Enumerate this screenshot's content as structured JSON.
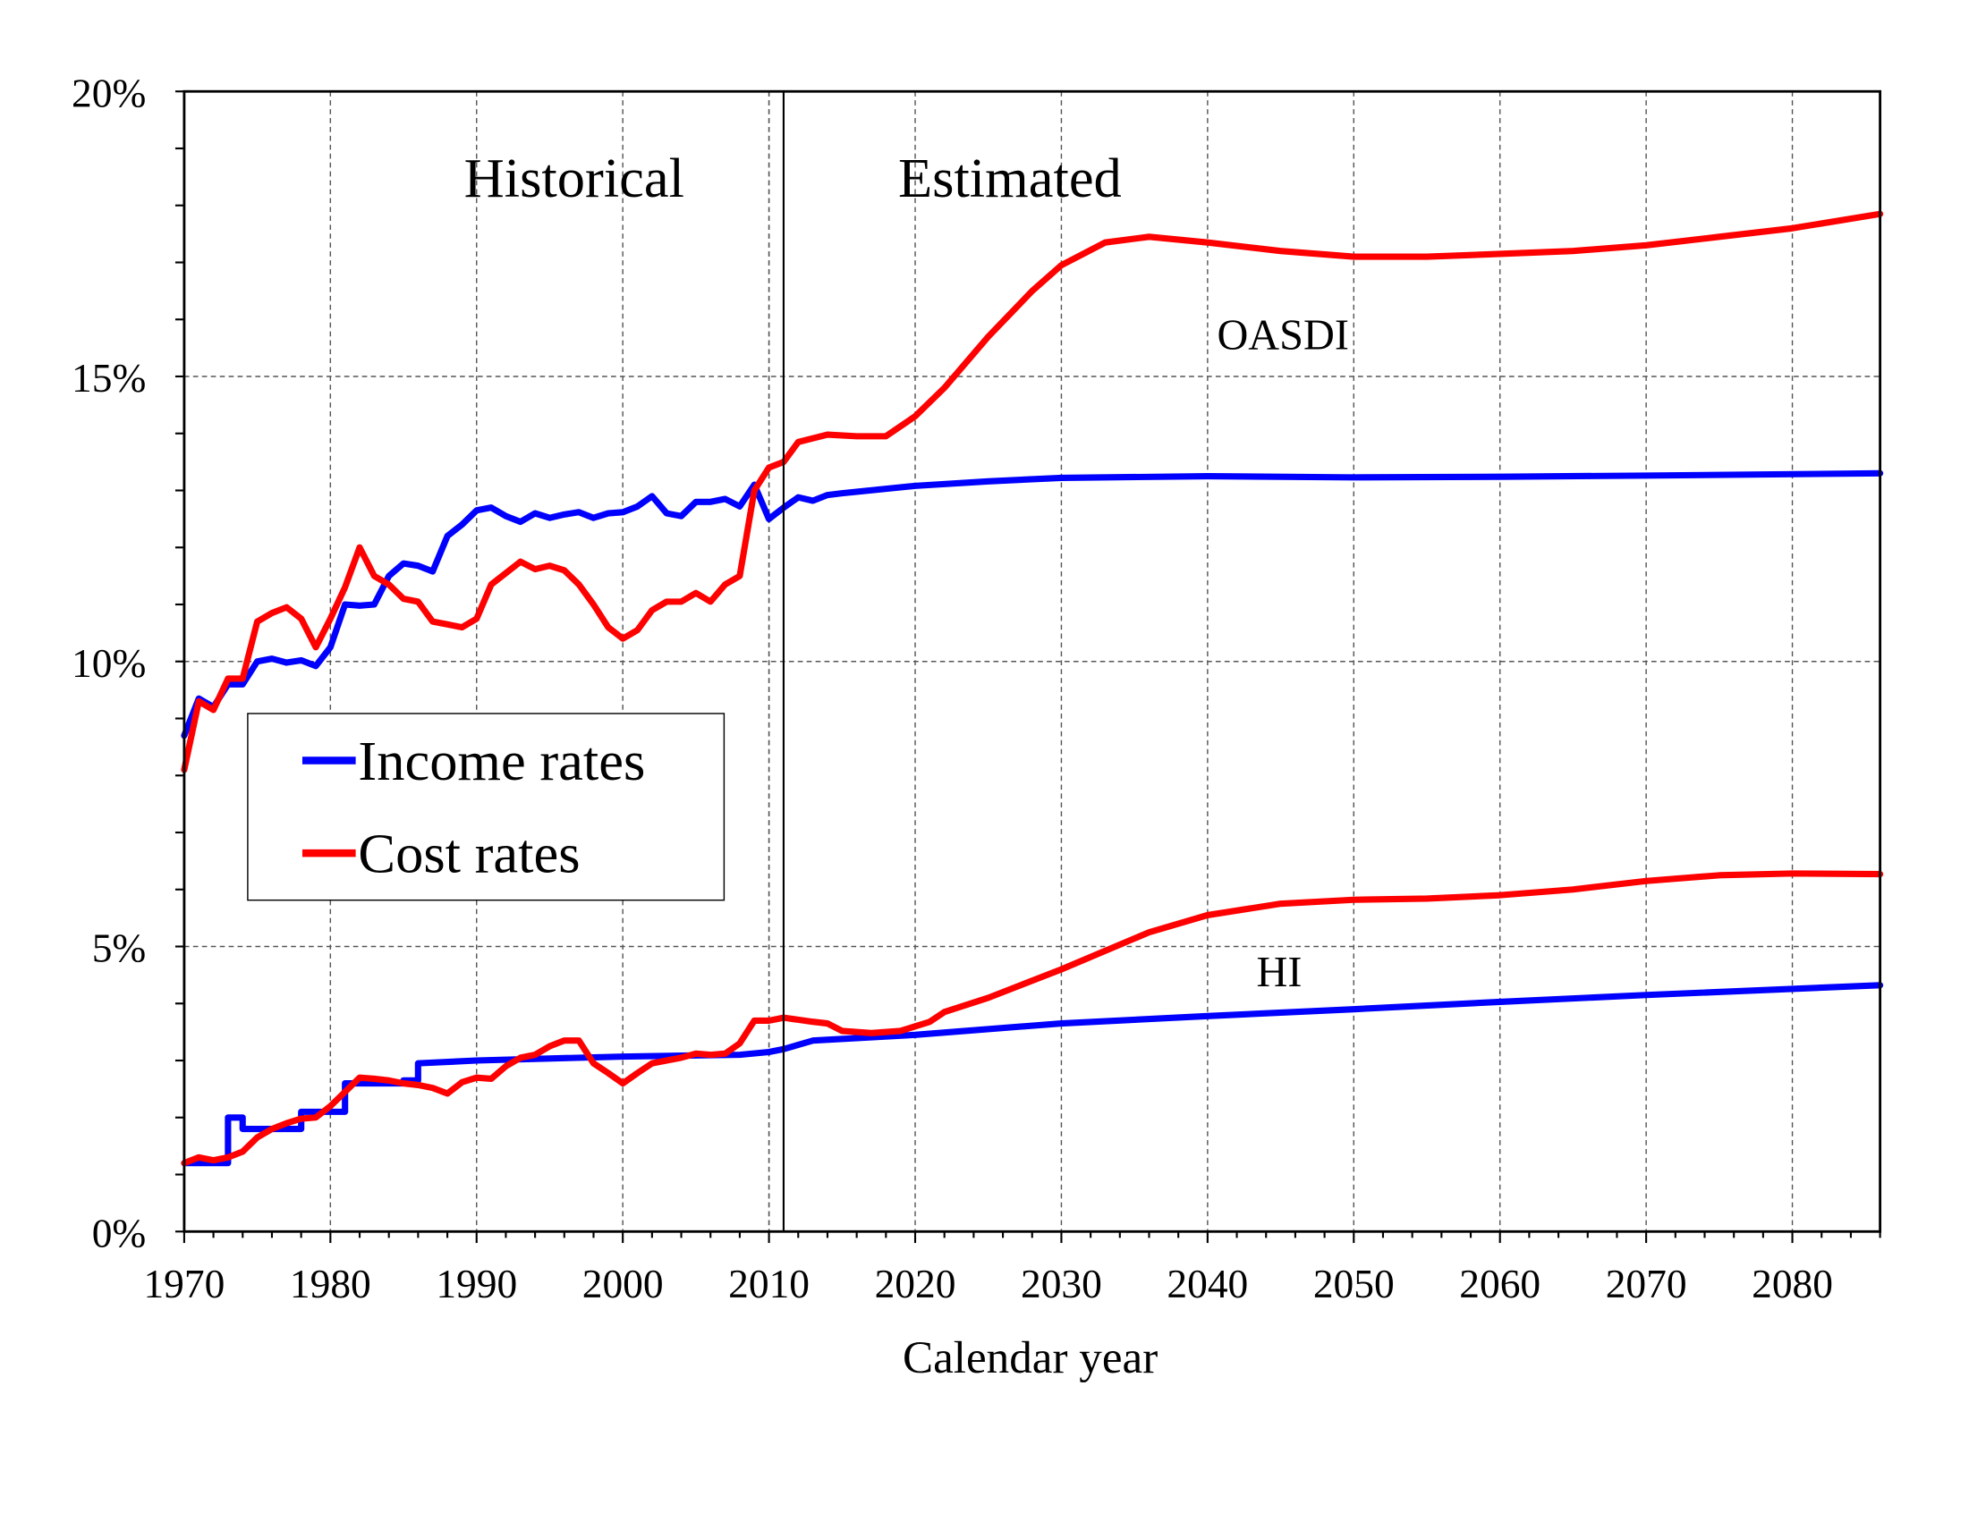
{
  "chart_data": {
    "type": "line",
    "xlabel": "Calendar year",
    "ylabel": "",
    "xlim": [
      1970,
      2086
    ],
    "ylim": [
      0,
      20
    ],
    "x_ticks": [
      1970,
      1980,
      1990,
      2000,
      2010,
      2020,
      2030,
      2040,
      2050,
      2060,
      2070,
      2080
    ],
    "x_tick_labels": [
      "1970",
      "1980",
      "1990",
      "2000",
      "2010",
      "2020",
      "2030",
      "2040",
      "2050",
      "2060",
      "2070",
      "2080"
    ],
    "y_ticks": [
      0,
      5,
      10,
      15,
      20
    ],
    "y_tick_labels": [
      "0%",
      "5%",
      "10%",
      "15%",
      "20%"
    ],
    "grid": true,
    "divider_year": 2011,
    "region_labels": [
      "Historical",
      "Estimated"
    ],
    "annotations": [
      "OASDI",
      "HI"
    ],
    "legend": {
      "placement": "middle-left",
      "entries": [
        {
          "label": "Income rates",
          "color": "#0000ff"
        },
        {
          "label": "Cost rates",
          "color": "#ff0000"
        }
      ]
    },
    "series": [
      {
        "group": "OASDI",
        "kind": "Income rates",
        "color": "#0000ff",
        "points": [
          [
            1970,
            8.7
          ],
          [
            1971,
            9.35
          ],
          [
            1972,
            9.2
          ],
          [
            1973,
            9.6
          ],
          [
            1974,
            9.6
          ],
          [
            1975,
            10.0
          ],
          [
            1976,
            10.05
          ],
          [
            1977,
            9.98
          ],
          [
            1978,
            10.02
          ],
          [
            1979,
            9.92
          ],
          [
            1980,
            10.25
          ],
          [
            1981,
            11.0
          ],
          [
            1982,
            10.98
          ],
          [
            1983,
            11.0
          ],
          [
            1984,
            11.5
          ],
          [
            1985,
            11.72
          ],
          [
            1986,
            11.68
          ],
          [
            1987,
            11.58
          ],
          [
            1988,
            12.2
          ],
          [
            1989,
            12.4
          ],
          [
            1990,
            12.65
          ],
          [
            1991,
            12.7
          ],
          [
            1992,
            12.55
          ],
          [
            1993,
            12.45
          ],
          [
            1994,
            12.6
          ],
          [
            1995,
            12.52
          ],
          [
            1996,
            12.58
          ],
          [
            1997,
            12.62
          ],
          [
            1998,
            12.52
          ],
          [
            1999,
            12.6
          ],
          [
            2000,
            12.62
          ],
          [
            2001,
            12.72
          ],
          [
            2002,
            12.9
          ],
          [
            2003,
            12.6
          ],
          [
            2004,
            12.55
          ],
          [
            2005,
            12.8
          ],
          [
            2006,
            12.8
          ],
          [
            2007,
            12.85
          ],
          [
            2008,
            12.72
          ],
          [
            2009,
            13.1
          ],
          [
            2010,
            12.5
          ],
          [
            2011,
            12.7
          ],
          [
            2012,
            12.88
          ],
          [
            2013,
            12.82
          ],
          [
            2014,
            12.92
          ],
          [
            2015,
            12.95
          ],
          [
            2020,
            13.08
          ],
          [
            2025,
            13.16
          ],
          [
            2030,
            13.22
          ],
          [
            2040,
            13.25
          ],
          [
            2050,
            13.23
          ],
          [
            2060,
            13.24
          ],
          [
            2070,
            13.26
          ],
          [
            2086,
            13.3
          ]
        ]
      },
      {
        "group": "OASDI",
        "kind": "Cost rates",
        "color": "#ff0000",
        "points": [
          [
            1970,
            8.1
          ],
          [
            1971,
            9.3
          ],
          [
            1972,
            9.15
          ],
          [
            1973,
            9.7
          ],
          [
            1974,
            9.7
          ],
          [
            1975,
            10.7
          ],
          [
            1976,
            10.85
          ],
          [
            1977,
            10.95
          ],
          [
            1978,
            10.75
          ],
          [
            1979,
            10.25
          ],
          [
            1980,
            10.75
          ],
          [
            1981,
            11.3
          ],
          [
            1982,
            12.0
          ],
          [
            1983,
            11.5
          ],
          [
            1984,
            11.35
          ],
          [
            1985,
            11.1
          ],
          [
            1986,
            11.05
          ],
          [
            1987,
            10.7
          ],
          [
            1988,
            10.65
          ],
          [
            1989,
            10.6
          ],
          [
            1990,
            10.75
          ],
          [
            1991,
            11.35
          ],
          [
            1992,
            11.55
          ],
          [
            1993,
            11.75
          ],
          [
            1994,
            11.62
          ],
          [
            1995,
            11.68
          ],
          [
            1996,
            11.6
          ],
          [
            1997,
            11.35
          ],
          [
            1998,
            11.0
          ],
          [
            1999,
            10.6
          ],
          [
            2000,
            10.4
          ],
          [
            2001,
            10.55
          ],
          [
            2002,
            10.9
          ],
          [
            2003,
            11.05
          ],
          [
            2004,
            11.05
          ],
          [
            2005,
            11.2
          ],
          [
            2006,
            11.05
          ],
          [
            2007,
            11.35
          ],
          [
            2008,
            11.5
          ],
          [
            2009,
            13.0
          ],
          [
            2010,
            13.4
          ],
          [
            2011,
            13.5
          ],
          [
            2012,
            13.85
          ],
          [
            2014,
            13.98
          ],
          [
            2016,
            13.95
          ],
          [
            2018,
            13.95
          ],
          [
            2020,
            14.3
          ],
          [
            2022,
            14.8
          ],
          [
            2025,
            15.7
          ],
          [
            2028,
            16.5
          ],
          [
            2030,
            16.95
          ],
          [
            2033,
            17.35
          ],
          [
            2036,
            17.45
          ],
          [
            2040,
            17.35
          ],
          [
            2045,
            17.2
          ],
          [
            2050,
            17.1
          ],
          [
            2055,
            17.1
          ],
          [
            2060,
            17.15
          ],
          [
            2065,
            17.2
          ],
          [
            2070,
            17.3
          ],
          [
            2075,
            17.45
          ],
          [
            2080,
            17.6
          ],
          [
            2086,
            17.85
          ]
        ]
      },
      {
        "group": "HI",
        "kind": "Income rates",
        "color": "#0000ff",
        "points": [
          [
            1970,
            1.2
          ],
          [
            1973,
            1.2
          ],
          [
            1973,
            2.0
          ],
          [
            1974,
            2.0
          ],
          [
            1974,
            1.8
          ],
          [
            1978,
            1.8
          ],
          [
            1978,
            2.1
          ],
          [
            1981,
            2.1
          ],
          [
            1981,
            2.6
          ],
          [
            1985,
            2.6
          ],
          [
            1985,
            2.65
          ],
          [
            1986,
            2.65
          ],
          [
            1986,
            2.95
          ],
          [
            1990,
            3.0
          ],
          [
            2000,
            3.07
          ],
          [
            2008,
            3.1
          ],
          [
            2010,
            3.15
          ],
          [
            2011,
            3.2
          ],
          [
            2013,
            3.35
          ],
          [
            2020,
            3.45
          ],
          [
            2030,
            3.65
          ],
          [
            2040,
            3.78
          ],
          [
            2050,
            3.9
          ],
          [
            2060,
            4.03
          ],
          [
            2070,
            4.15
          ],
          [
            2086,
            4.32
          ]
        ]
      },
      {
        "group": "HI",
        "kind": "Cost rates",
        "color": "#ff0000",
        "points": [
          [
            1970,
            1.2
          ],
          [
            1971,
            1.3
          ],
          [
            1972,
            1.25
          ],
          [
            1973,
            1.3
          ],
          [
            1974,
            1.4
          ],
          [
            1975,
            1.65
          ],
          [
            1976,
            1.8
          ],
          [
            1977,
            1.9
          ],
          [
            1978,
            1.98
          ],
          [
            1979,
            2.0
          ],
          [
            1980,
            2.2
          ],
          [
            1981,
            2.45
          ],
          [
            1982,
            2.7
          ],
          [
            1983,
            2.68
          ],
          [
            1984,
            2.65
          ],
          [
            1985,
            2.6
          ],
          [
            1986,
            2.57
          ],
          [
            1987,
            2.52
          ],
          [
            1988,
            2.42
          ],
          [
            1989,
            2.62
          ],
          [
            1990,
            2.7
          ],
          [
            1991,
            2.68
          ],
          [
            1992,
            2.9
          ],
          [
            1993,
            3.05
          ],
          [
            1994,
            3.1
          ],
          [
            1995,
            3.25
          ],
          [
            1996,
            3.35
          ],
          [
            1997,
            3.35
          ],
          [
            1998,
            2.95
          ],
          [
            1999,
            2.78
          ],
          [
            2000,
            2.6
          ],
          [
            2001,
            2.78
          ],
          [
            2002,
            2.95
          ],
          [
            2003,
            3.0
          ],
          [
            2004,
            3.05
          ],
          [
            2005,
            3.12
          ],
          [
            2006,
            3.1
          ],
          [
            2007,
            3.12
          ],
          [
            2008,
            3.3
          ],
          [
            2009,
            3.7
          ],
          [
            2010,
            3.7
          ],
          [
            2011,
            3.75
          ],
          [
            2013,
            3.68
          ],
          [
            2014,
            3.65
          ],
          [
            2015,
            3.52
          ],
          [
            2017,
            3.48
          ],
          [
            2019,
            3.52
          ],
          [
            2021,
            3.68
          ],
          [
            2022,
            3.85
          ],
          [
            2025,
            4.1
          ],
          [
            2030,
            4.6
          ],
          [
            2036,
            5.25
          ],
          [
            2040,
            5.55
          ],
          [
            2045,
            5.75
          ],
          [
            2050,
            5.82
          ],
          [
            2055,
            5.84
          ],
          [
            2060,
            5.9
          ],
          [
            2065,
            6.0
          ],
          [
            2070,
            6.15
          ],
          [
            2075,
            6.25
          ],
          [
            2080,
            6.28
          ],
          [
            2086,
            6.27
          ]
        ]
      }
    ]
  }
}
